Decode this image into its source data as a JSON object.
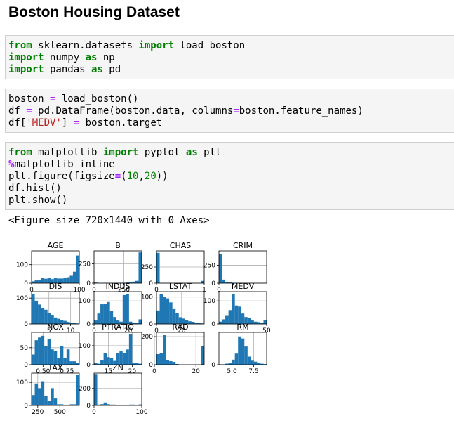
{
  "notebook": {
    "title": "Boston Housing Dataset",
    "cells": [
      {
        "lines": [
          [
            [
              "kw",
              "from"
            ],
            [
              "t",
              " sklearn.datasets "
            ],
            [
              "kw",
              "import"
            ],
            [
              "t",
              " load_boston"
            ]
          ],
          [
            [
              "kw",
              "import"
            ],
            [
              "t",
              " numpy "
            ],
            [
              "kw",
              "as"
            ],
            [
              "t",
              " np"
            ]
          ],
          [
            [
              "kw",
              "import"
            ],
            [
              "t",
              " pandas "
            ],
            [
              "kw",
              "as"
            ],
            [
              "t",
              " pd"
            ]
          ]
        ]
      },
      {
        "lines": [
          [
            [
              "t",
              "boston "
            ],
            [
              "op",
              "="
            ],
            [
              "t",
              " load_boston()"
            ]
          ],
          [
            [
              "t",
              "df "
            ],
            [
              "op",
              "="
            ],
            [
              "t",
              " pd.DataFrame(boston.data, columns"
            ],
            [
              "op",
              "="
            ],
            [
              "t",
              "boston.feature_names)"
            ]
          ],
          [
            [
              "t",
              "df["
            ],
            [
              "str",
              "'MEDV'"
            ],
            [
              "t",
              "] "
            ],
            [
              "op",
              "="
            ],
            [
              "t",
              " boston.target"
            ]
          ]
        ]
      },
      {
        "lines": [
          [
            [
              "kw",
              "from"
            ],
            [
              "t",
              " matplotlib "
            ],
            [
              "kw",
              "import"
            ],
            [
              "t",
              " pyplot "
            ],
            [
              "kw",
              "as"
            ],
            [
              "t",
              " plt"
            ]
          ],
          [
            [
              "op",
              "%"
            ],
            [
              "t",
              "matplotlib inline"
            ]
          ],
          [
            [
              "t",
              "plt.figure(figsize"
            ],
            [
              "op",
              "="
            ],
            [
              "t",
              "("
            ],
            [
              "num",
              "10"
            ],
            [
              "t",
              ","
            ],
            [
              "num",
              "20"
            ],
            [
              "t",
              "))"
            ]
          ],
          [
            [
              "t",
              "df.hist()"
            ]
          ],
          [
            [
              "t",
              "plt.show()"
            ]
          ]
        ]
      }
    ],
    "output_text": "<Figure size 720x1440 with 0 Axes>"
  },
  "chart_data": {
    "type": "bar",
    "bar_color": "#1f77b4",
    "grid": true,
    "subplots": [
      {
        "title": "AGE",
        "xlim": [
          0,
          100
        ],
        "ylim": [
          0,
          175
        ],
        "xticks": [
          0,
          100
        ],
        "yticks": [
          0,
          100
        ],
        "values": [
          10,
          15,
          18,
          28,
          24,
          28,
          22,
          28,
          25,
          25,
          28,
          32,
          40,
          62,
          150
        ]
      },
      {
        "title": "B",
        "xlim": [
          0,
          400
        ],
        "ylim": [
          0,
          420
        ],
        "xticks": [
          0,
          250
        ],
        "yticks": [
          0,
          250
        ],
        "values": [
          8,
          2,
          2,
          2,
          2,
          2,
          2,
          3,
          5,
          5,
          8,
          12,
          20,
          30,
          400
        ]
      },
      {
        "title": "CHAS",
        "xlim": [
          0,
          1
        ],
        "ylim": [
          0,
          500
        ],
        "xticks": [
          0,
          1
        ],
        "yticks": [
          0,
          250
        ],
        "values": [
          470,
          0,
          0,
          0,
          0,
          0,
          0,
          0,
          0,
          0,
          0,
          0,
          0,
          0,
          35
        ]
      },
      {
        "title": "CRIM",
        "xlim": [
          0,
          90
        ],
        "ylim": [
          0,
          450
        ],
        "xticks": [
          0
        ],
        "yticks": [
          0,
          250
        ],
        "values": [
          410,
          50,
          20,
          10,
          5,
          3,
          2,
          2,
          1,
          1,
          1,
          1,
          0,
          0,
          1
        ]
      },
      {
        "title": "DIS",
        "xlim": [
          1,
          12
        ],
        "ylim": [
          0,
          125
        ],
        "xticks": [
          5,
          10
        ],
        "yticks": [
          0,
          100
        ],
        "values": [
          115,
          90,
          75,
          60,
          55,
          42,
          35,
          25,
          20,
          15,
          12,
          8,
          5,
          3,
          2
        ]
      },
      {
        "title": "INDUS",
        "xlim": [
          0,
          28
        ],
        "ylim": [
          0,
          140
        ],
        "xticks": [
          0,
          20
        ],
        "yticks": [
          0,
          100
        ],
        "values": [
          15,
          45,
          85,
          88,
          95,
          55,
          30,
          15,
          10,
          125,
          130,
          10,
          5,
          5,
          20
        ]
      },
      {
        "title": "LSTAT",
        "xlim": [
          0,
          38
        ],
        "ylim": [
          0,
          120
        ],
        "xticks": [
          0,
          20
        ],
        "yticks": [
          0,
          100
        ],
        "values": [
          50,
          110,
          100,
          95,
          80,
          55,
          40,
          25,
          20,
          15,
          10,
          8,
          5,
          3,
          2
        ]
      },
      {
        "title": "MEDV",
        "xlim": [
          5,
          50
        ],
        "ylim": [
          0,
          140
        ],
        "xticks": [
          50
        ],
        "yticks": [
          0,
          100
        ],
        "values": [
          10,
          20,
          35,
          60,
          130,
          80,
          75,
          45,
          30,
          25,
          15,
          10,
          8,
          5,
          18
        ]
      },
      {
        "title": "NOX",
        "xlim": [
          0.38,
          0.88
        ],
        "ylim": [
          0,
          95
        ],
        "xticks": [
          0.5,
          0.75
        ],
        "yticks": [
          0,
          50
        ],
        "values": [
          30,
          72,
          80,
          85,
          55,
          75,
          45,
          40,
          20,
          55,
          20,
          45,
          10,
          10,
          5
        ]
      },
      {
        "title": "PTRATIO",
        "xlim": [
          12,
          22
        ],
        "ylim": [
          0,
          170
        ],
        "xticks": [
          15,
          20
        ],
        "yticks": [
          0,
          100
        ],
        "values": [
          10,
          5,
          25,
          60,
          40,
          35,
          20,
          60,
          70,
          60,
          80,
          160,
          10,
          10,
          5
        ]
      },
      {
        "title": "RAD",
        "xlim": [
          1,
          24
        ],
        "ylim": [
          0,
          230
        ],
        "xticks": [
          0,
          20
        ],
        "yticks": [
          0,
          200
        ],
        "values": [
          75,
          80,
          210,
          30,
          25,
          20,
          5,
          0,
          0,
          0,
          0,
          0,
          0,
          0,
          130
        ]
      },
      {
        "title": "RM",
        "xlim": [
          3.5,
          9
        ],
        "ylim": [
          0,
          160
        ],
        "xticks": [
          5.0,
          7.5
        ],
        "yticks": [
          0
        ],
        "values": [
          2,
          2,
          5,
          10,
          25,
          55,
          140,
          130,
          90,
          40,
          20,
          15,
          8,
          5,
          3
        ]
      },
      {
        "title": "TAX",
        "xlim": [
          180,
          720
        ],
        "ylim": [
          0,
          140
        ],
        "xticks": [
          250,
          500
        ],
        "yticks": [
          0,
          100
        ],
        "values": [
          45,
          95,
          75,
          105,
          40,
          20,
          75,
          30,
          5,
          5,
          0,
          0,
          5,
          5,
          132
        ]
      },
      {
        "title": "ZN",
        "xlim": [
          0,
          100
        ],
        "ylim": [
          0,
          380
        ],
        "xticks": [
          0,
          100
        ],
        "yticks": [
          0,
          200
        ],
        "values": [
          370,
          10,
          15,
          35,
          15,
          10,
          10,
          5,
          5,
          5,
          8,
          10,
          10,
          8,
          12
        ]
      }
    ]
  }
}
